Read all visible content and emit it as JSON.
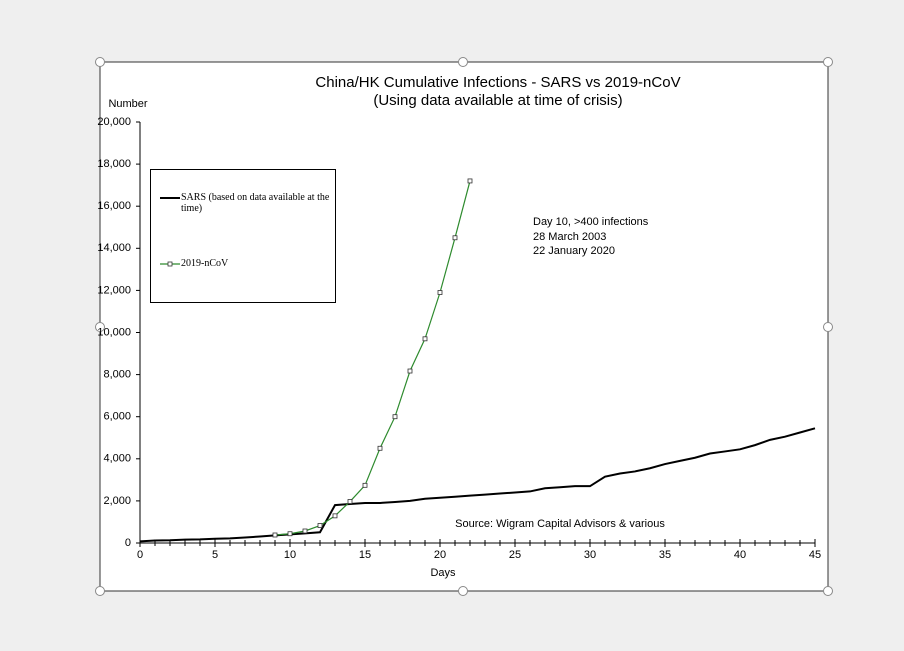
{
  "chart_data": {
    "type": "line",
    "title": "China/HK Cumulative Infections - SARS vs 2019-nCoV",
    "subtitle": "(Using data available at time of crisis)",
    "x_label": "Days",
    "y_label": "Number",
    "annotations": [
      "Day 10, >400 infections",
      "28 March 2003",
      "22 January 2020"
    ],
    "source": "Source: Wigram Capital Advisors & various",
    "x": [
      0,
      1,
      2,
      3,
      4,
      5,
      6,
      7,
      8,
      9,
      10,
      11,
      12,
      13,
      14,
      15,
      16,
      17,
      18,
      19,
      20,
      21,
      22,
      23,
      24,
      25,
      26,
      27,
      28,
      29,
      30,
      31,
      32,
      33,
      34,
      35,
      36,
      37,
      38,
      39,
      40,
      41,
      42,
      43,
      44,
      45
    ],
    "series": [
      {
        "name": "SARS (based on data available at the time)",
        "color": "#000000",
        "marker": false,
        "values": [
          80,
          120,
          130,
          160,
          170,
          200,
          220,
          260,
          310,
          360,
          410,
          460,
          510,
          1800,
          1850,
          1900,
          1900,
          1950,
          2000,
          2100,
          2150,
          2200,
          2250,
          2300,
          2350,
          2400,
          2450,
          2600,
          2650,
          2700,
          2700,
          3150,
          3300,
          3400,
          3550,
          3750,
          3900,
          4050,
          4250,
          4350,
          4450,
          4650,
          4900,
          5050,
          5250,
          5450
        ]
      },
      {
        "name": "2019-nCoV",
        "color": "#2e8b2e",
        "marker": true,
        "values": [
          null,
          null,
          null,
          null,
          null,
          null,
          null,
          null,
          null,
          380,
          440,
          570,
          830,
          1290,
          1970,
          2740,
          4500,
          6000,
          8170,
          9700,
          11900,
          14500,
          17200,
          null,
          null,
          null,
          null,
          null,
          null,
          null,
          null,
          null,
          null,
          null,
          null,
          null,
          null,
          null,
          null,
          null,
          null,
          null,
          null,
          null,
          null,
          null
        ]
      }
    ],
    "xlim": [
      0,
      45
    ],
    "xticks": [
      0,
      5,
      10,
      15,
      20,
      25,
      30,
      35,
      40,
      45
    ],
    "ylim": [
      0,
      20000
    ],
    "yticks": [
      0,
      {
        "value": 2000,
        "label": "2,000"
      },
      {
        "value": 4000,
        "label": "4,000"
      },
      {
        "value": 6000,
        "label": "6,000"
      },
      {
        "value": 8000,
        "label": "8,000"
      },
      {
        "value": 10000,
        "label": "10,000"
      },
      {
        "value": 12000,
        "label": "12,000"
      },
      {
        "value": 14000,
        "label": "14,000"
      },
      {
        "value": 16000,
        "label": "16,000"
      },
      {
        "value": 18000,
        "label": "18,000"
      },
      {
        "value": 20000,
        "label": "20,000"
      }
    ],
    "grid": false
  }
}
